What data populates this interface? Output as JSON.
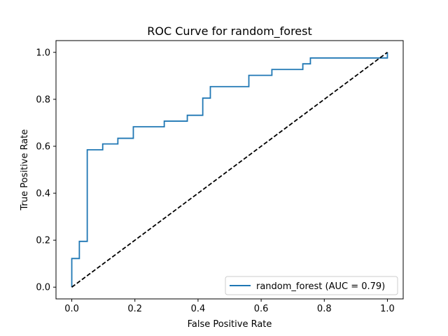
{
  "chart_data": {
    "type": "line",
    "title": "ROC Curve for random_forest",
    "xlabel": "False Positive Rate",
    "ylabel": "True Positive Rate",
    "xlim": [
      -0.05,
      1.05
    ],
    "ylim": [
      -0.05,
      1.05
    ],
    "x_ticks": [
      "0.0",
      "0.2",
      "0.4",
      "0.6",
      "0.8",
      "1.0"
    ],
    "y_ticks": [
      "0.0",
      "0.2",
      "0.4",
      "0.6",
      "0.8",
      "1.0"
    ],
    "grid": false,
    "legend_position": "lower-right",
    "series": [
      {
        "name": "random_forest (AUC = 0.79)",
        "color": "#1f77b4",
        "style": "solid",
        "x": [
          0.0,
          0.0,
          0.024,
          0.024,
          0.049,
          0.049,
          0.098,
          0.098,
          0.146,
          0.146,
          0.195,
          0.195,
          0.293,
          0.293,
          0.366,
          0.366,
          0.415,
          0.415,
          0.439,
          0.439,
          0.561,
          0.561,
          0.634,
          0.634,
          0.732,
          0.732,
          0.756,
          0.756,
          1.0,
          1.0
        ],
        "y": [
          0.0,
          0.122,
          0.122,
          0.195,
          0.195,
          0.585,
          0.585,
          0.61,
          0.61,
          0.634,
          0.634,
          0.683,
          0.683,
          0.707,
          0.707,
          0.732,
          0.732,
          0.805,
          0.805,
          0.854,
          0.854,
          0.902,
          0.902,
          0.927,
          0.927,
          0.951,
          0.951,
          0.976,
          0.976,
          1.0
        ]
      },
      {
        "name": "",
        "color": "#000000",
        "style": "dashed",
        "x": [
          0.0,
          1.0
        ],
        "y": [
          0.0,
          1.0
        ]
      }
    ]
  }
}
